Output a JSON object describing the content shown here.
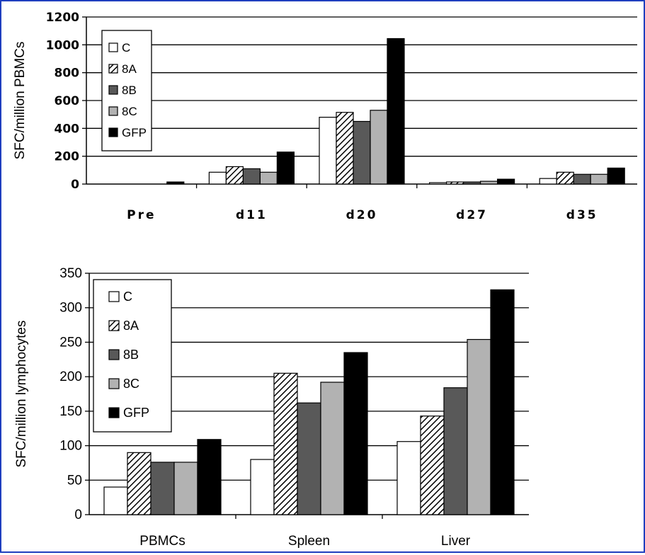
{
  "chart_data": [
    {
      "type": "bar",
      "title": "",
      "xlabel": "",
      "ylabel": "SFC/million PBMCs",
      "ylim": [
        0,
        1200
      ],
      "yticks": [
        "0",
        "200",
        "400",
        "600",
        "800",
        "1000",
        "1200"
      ],
      "categories": [
        "Pre",
        "d11",
        "d20",
        "d27",
        "d35"
      ],
      "grid": "horizontal",
      "legend_position": "top-left",
      "series": [
        {
          "name": "C",
          "fill": "white",
          "values": [
            0,
            85,
            480,
            10,
            40
          ]
        },
        {
          "name": "8A",
          "fill": "hatched",
          "values": [
            0,
            125,
            515,
            15,
            85
          ]
        },
        {
          "name": "8B",
          "fill": "#595959",
          "values": [
            0,
            110,
            450,
            15,
            70
          ]
        },
        {
          "name": "8C",
          "fill": "#b2b2b2",
          "values": [
            0,
            85,
            530,
            20,
            70
          ]
        },
        {
          "name": "GFP",
          "fill": "#000000",
          "values": [
            15,
            230,
            1045,
            35,
            115
          ]
        }
      ]
    },
    {
      "type": "bar",
      "title": "",
      "xlabel": "",
      "ylabel": "SFC/million lymphocytes",
      "ylim": [
        0,
        350
      ],
      "yticks": [
        "0",
        "50",
        "100",
        "150",
        "200",
        "250",
        "300",
        "350"
      ],
      "categories": [
        "PBMCs",
        "Spleen",
        "Liver"
      ],
      "grid": "horizontal",
      "legend_position": "top-left",
      "series": [
        {
          "name": "C",
          "fill": "white",
          "values": [
            40,
            80,
            106
          ]
        },
        {
          "name": "8A",
          "fill": "hatched",
          "values": [
            90,
            205,
            143
          ]
        },
        {
          "name": "8B",
          "fill": "#595959",
          "values": [
            76,
            162,
            184
          ]
        },
        {
          "name": "8C",
          "fill": "#b2b2b2",
          "values": [
            76,
            192,
            254
          ]
        },
        {
          "name": "GFP",
          "fill": "#000000",
          "values": [
            109,
            235,
            326
          ]
        }
      ]
    }
  ]
}
